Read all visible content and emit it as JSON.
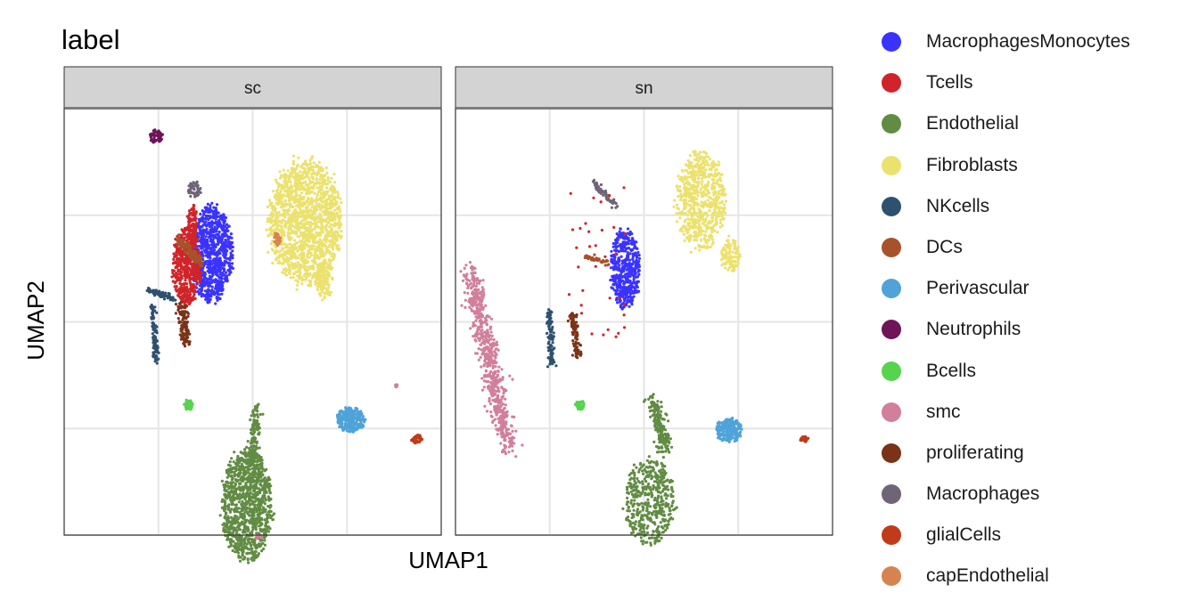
{
  "chart_data": {
    "type": "scatter",
    "title": "label",
    "xlabel": "UMAP1",
    "ylabel": "UMAP2",
    "facets": [
      "sc",
      "sn"
    ],
    "legend_position": "right",
    "grid": true,
    "xlim": [
      -10,
      10
    ],
    "ylim": [
      -10,
      10
    ],
    "categories": [
      {
        "name": "MacrophagesMonocytes",
        "color": "#3A33FF"
      },
      {
        "name": "Tcells",
        "color": "#D1242A"
      },
      {
        "name": "Endothelial",
        "color": "#618C43"
      },
      {
        "name": "Fibroblasts",
        "color": "#EBE26E"
      },
      {
        "name": "NKcells",
        "color": "#2F5170"
      },
      {
        "name": "DCs",
        "color": "#A8522B"
      },
      {
        "name": "Perivascular",
        "color": "#4FA3D9"
      },
      {
        "name": "Neutrophils",
        "color": "#6E1457"
      },
      {
        "name": "Bcells",
        "color": "#56D44E"
      },
      {
        "name": "smc",
        "color": "#D17F9B"
      },
      {
        "name": "proliferating",
        "color": "#7A3318"
      },
      {
        "name": "Macrophages",
        "color": "#706477"
      },
      {
        "name": "glialCells",
        "color": "#C13B1A"
      },
      {
        "name": "capEndothelial",
        "color": "#D6834F"
      }
    ],
    "clusters": {
      "sc": [
        {
          "label": "Neutrophils",
          "shape": "ellipse",
          "cx": -5.1,
          "cy": 8.7,
          "rx": 0.35,
          "ry": 0.3,
          "n": 60
        },
        {
          "label": "Fibroblasts",
          "shape": "ellipse",
          "cx": 2.8,
          "cy": 4.7,
          "rx": 1.9,
          "ry": 2.9,
          "n": 1500
        },
        {
          "label": "Fibroblasts",
          "shape": "ellipse",
          "cx": 3.8,
          "cy": 2.0,
          "rx": 0.45,
          "ry": 0.9,
          "n": 120
        },
        {
          "label": "capEndothelial",
          "shape": "ellipse",
          "cx": 1.3,
          "cy": 3.9,
          "rx": 0.18,
          "ry": 0.45,
          "n": 30
        },
        {
          "label": "Macrophages",
          "shape": "ellipse",
          "cx": -3.1,
          "cy": 6.2,
          "rx": 0.35,
          "ry": 0.35,
          "n": 50
        },
        {
          "label": "MacrophagesMonocytes",
          "shape": "ellipse",
          "cx": -2.2,
          "cy": 3.2,
          "rx": 1.1,
          "ry": 2.2,
          "n": 900
        },
        {
          "label": "Tcells",
          "shape": "ellipse",
          "cx": -3.5,
          "cy": 2.6,
          "rx": 0.75,
          "ry": 1.8,
          "n": 550
        },
        {
          "label": "Tcells",
          "shape": "ellipse",
          "cx": -3.2,
          "cy": 4.7,
          "rx": 0.25,
          "ry": 0.9,
          "n": 100
        },
        {
          "label": "DCs",
          "shape": "line",
          "x0": -4.0,
          "y0": 3.9,
          "x1": -2.7,
          "y1": 2.7,
          "w": 0.22,
          "n": 120
        },
        {
          "label": "proliferating",
          "shape": "line",
          "x0": -3.8,
          "y0": 0.9,
          "x1": -3.5,
          "y1": -1.0,
          "w": 0.25,
          "n": 120
        },
        {
          "label": "NKcells",
          "shape": "line",
          "x0": -5.5,
          "y0": 1.5,
          "x1": -4.2,
          "y1": 1.1,
          "w": 0.15,
          "n": 80
        },
        {
          "label": "NKcells",
          "shape": "line",
          "x0": -5.3,
          "y0": 0.8,
          "x1": -5.1,
          "y1": -2.0,
          "w": 0.15,
          "n": 100
        },
        {
          "label": "Bcells",
          "shape": "ellipse",
          "cx": -3.4,
          "cy": -3.9,
          "rx": 0.25,
          "ry": 0.25,
          "n": 50
        },
        {
          "label": "Endothelial",
          "shape": "ellipse",
          "cx": -0.3,
          "cy": -8.6,
          "rx": 1.3,
          "ry": 2.6,
          "n": 1100
        },
        {
          "label": "Endothelial",
          "shape": "line",
          "x0": 0.2,
          "y0": -4.0,
          "x1": 0.0,
          "y1": -6.5,
          "w": 0.25,
          "n": 120
        },
        {
          "label": "smc",
          "shape": "ellipse",
          "cx": 0.3,
          "cy": -10.1,
          "rx": 0.25,
          "ry": 0.1,
          "n": 15
        },
        {
          "label": "smc",
          "shape": "ellipse",
          "cx": 7.6,
          "cy": -3.0,
          "rx": 0.1,
          "ry": 0.08,
          "n": 8
        },
        {
          "label": "Perivascular",
          "shape": "ellipse",
          "cx": 5.2,
          "cy": -4.6,
          "rx": 0.75,
          "ry": 0.55,
          "n": 280
        },
        {
          "label": "glialCells",
          "shape": "ellipse",
          "cx": 8.7,
          "cy": -5.5,
          "rx": 0.28,
          "ry": 0.22,
          "n": 40
        }
      ],
      "sn": [
        {
          "label": "Macrophages",
          "shape": "line",
          "x0": -2.7,
          "y0": 6.5,
          "x1": -1.5,
          "y1": 5.5,
          "w": 0.2,
          "n": 60
        },
        {
          "label": "MacrophagesMonocytes",
          "shape": "ellipse",
          "cx": -1.0,
          "cy": 2.5,
          "rx": 0.75,
          "ry": 1.9,
          "n": 500
        },
        {
          "label": "Fibroblasts",
          "shape": "ellipse",
          "cx": 3.0,
          "cy": 5.7,
          "rx": 1.3,
          "ry": 2.3,
          "n": 650
        },
        {
          "label": "Fibroblasts",
          "shape": "ellipse",
          "cx": 4.6,
          "cy": 3.2,
          "rx": 0.5,
          "ry": 0.8,
          "n": 120
        },
        {
          "label": "DCs",
          "shape": "line",
          "x0": -3.1,
          "y0": 3.1,
          "x1": -1.8,
          "y1": 2.7,
          "w": 0.12,
          "n": 40
        },
        {
          "label": "Tcells",
          "shape": "scatter",
          "cx": -2.5,
          "cy": 2.8,
          "rx": 1.5,
          "ry": 3.5,
          "n": 35
        },
        {
          "label": "smc",
          "shape": "line",
          "x0": -9.2,
          "y0": 2.3,
          "x1": -7.2,
          "y1": -6.0,
          "w": 0.5,
          "n": 650
        },
        {
          "label": "NKcells",
          "shape": "line",
          "x0": -5.0,
          "y0": 0.5,
          "x1": -4.9,
          "y1": -2.0,
          "w": 0.18,
          "n": 110
        },
        {
          "label": "proliferating",
          "shape": "line",
          "x0": -3.8,
          "y0": 0.4,
          "x1": -3.5,
          "y1": -1.6,
          "w": 0.2,
          "n": 80
        },
        {
          "label": "Bcells",
          "shape": "ellipse",
          "cx": -3.4,
          "cy": -3.9,
          "rx": 0.22,
          "ry": 0.22,
          "n": 40
        },
        {
          "label": "Endothelial",
          "shape": "line",
          "x0": 0.5,
          "y0": -3.7,
          "x1": 1.1,
          "y1": -6.0,
          "w": 0.35,
          "n": 200
        },
        {
          "label": "Endothelial",
          "shape": "ellipse",
          "cx": 0.3,
          "cy": -8.4,
          "rx": 1.3,
          "ry": 2.0,
          "n": 450
        },
        {
          "label": "Perivascular",
          "shape": "ellipse",
          "cx": 4.5,
          "cy": -5.1,
          "rx": 0.7,
          "ry": 0.55,
          "n": 200
        },
        {
          "label": "glialCells",
          "shape": "ellipse",
          "cx": 8.5,
          "cy": -5.5,
          "rx": 0.25,
          "ry": 0.12,
          "n": 20
        }
      ]
    }
  }
}
